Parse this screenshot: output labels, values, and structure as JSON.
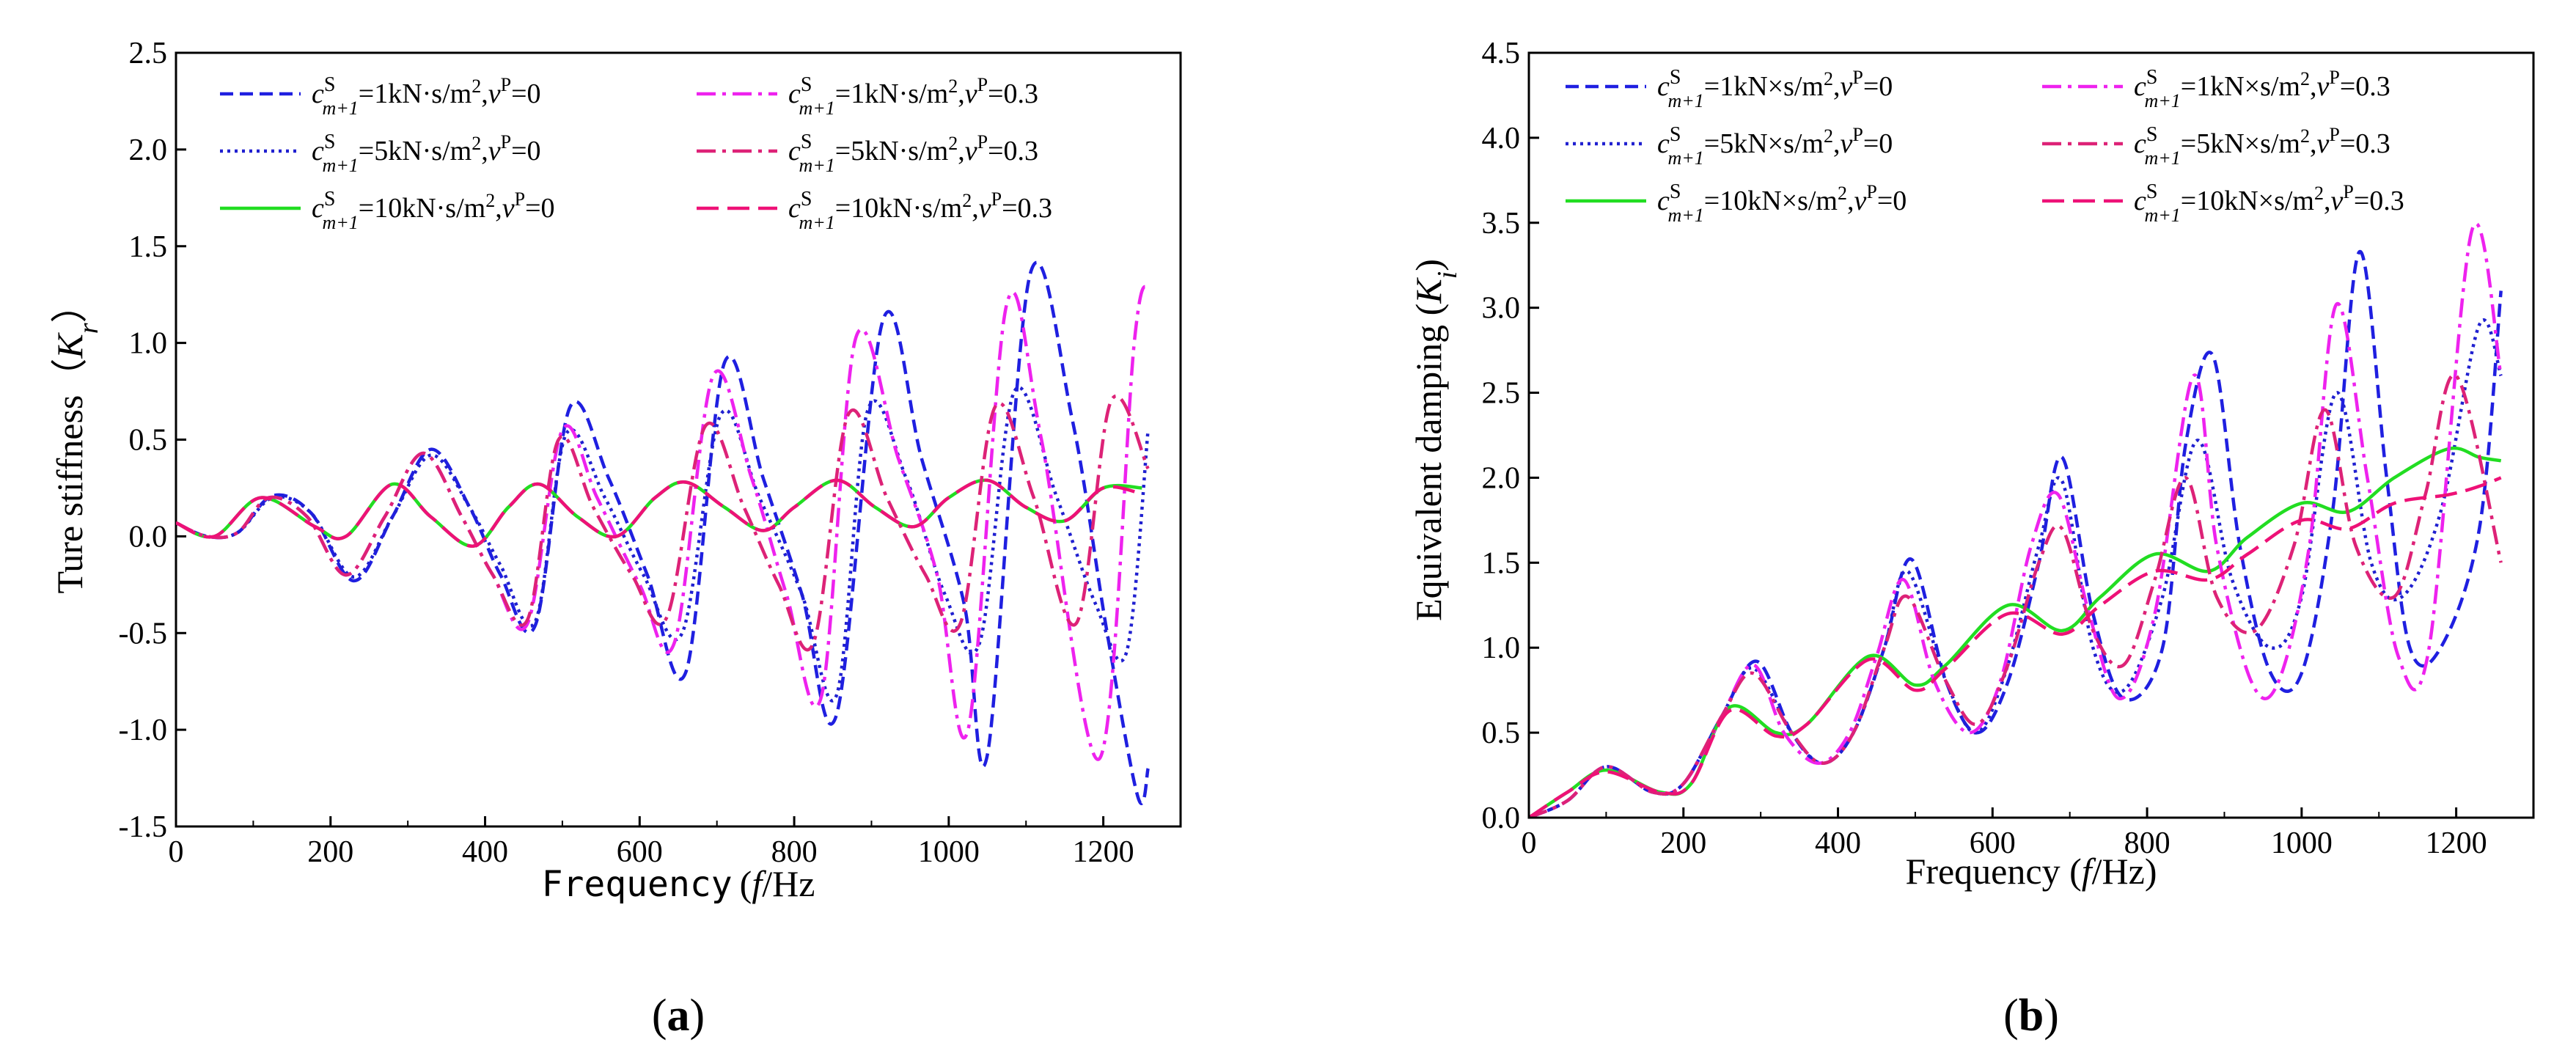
{
  "chart_data": [
    {
      "type": "line",
      "panel_label_open": "(",
      "panel_label_letter": "a",
      "panel_label_close": ")",
      "title": "",
      "xlabel_main": "Frequency",
      "xlabel_open": "(",
      "xlabel_f": "f",
      "xlabel_unit": "/Hz",
      "ylabel_main": "Ture stiffness",
      "ylabel_open": "（",
      "ylabel_K": "K",
      "ylabel_sub": "r",
      "ylabel_close": "）",
      "xlim": [
        0,
        1300
      ],
      "ylim": [
        -1.5,
        2.5
      ],
      "x_ticks": [
        0,
        200,
        400,
        600,
        800,
        1000,
        1200
      ],
      "x_tick_labels": [
        "0",
        "200",
        "400",
        "600",
        "800",
        "1000",
        "1200"
      ],
      "y_ticks": [
        -1.5,
        -1.0,
        -0.5,
        0.0,
        0.5,
        1.0,
        1.5,
        2.0,
        2.5
      ],
      "y_tick_labels": [
        "-1.5",
        "-1.0",
        "-0.5",
        "0.0",
        "0.5",
        "1.0",
        "1.5",
        "2.0",
        "2.5"
      ],
      "grid": false,
      "legend_position": "top-left",
      "series": [
        {
          "c": "1",
          "unit": "kN·s/m",
          "v": "0",
          "color": "#1f1fe0",
          "dash": "dashed",
          "x": [
            0,
            40,
            80,
            125,
            175,
            230,
            280,
            330,
            380,
            420,
            465,
            510,
            560,
            610,
            660,
            710,
            760,
            810,
            855,
            915,
            965,
            1020,
            1050,
            1105,
            1160,
            1205,
            1245,
            1258
          ],
          "y": [
            0.07,
            0.0,
            0.02,
            0.21,
            0.12,
            -0.23,
            0.1,
            0.45,
            0.15,
            -0.2,
            -0.46,
            0.67,
            0.3,
            -0.2,
            -0.7,
            0.9,
            0.3,
            -0.3,
            -0.92,
            1.12,
            0.4,
            -0.35,
            -1.13,
            1.35,
            0.6,
            -0.5,
            -1.35,
            -1.2
          ]
        },
        {
          "c": "5",
          "unit": "kN·s/m",
          "v": "0",
          "color": "#2020d0",
          "dash": "dotted",
          "x": [
            0,
            40,
            80,
            125,
            175,
            230,
            280,
            330,
            380,
            420,
            465,
            505,
            555,
            605,
            655,
            705,
            755,
            810,
            855,
            895,
            945,
            995,
            1040,
            1085,
            1140,
            1190,
            1230,
            1258
          ],
          "y": [
            0.07,
            0.0,
            0.02,
            0.2,
            0.12,
            -0.21,
            0.1,
            0.42,
            0.15,
            -0.15,
            -0.44,
            0.53,
            0.2,
            -0.2,
            -0.5,
            0.63,
            0.2,
            -0.3,
            -0.82,
            0.65,
            0.3,
            -0.3,
            -0.55,
            0.75,
            0.2,
            -0.35,
            -0.6,
            0.55
          ]
        },
        {
          "c": "10",
          "unit": "kN·s/m",
          "v": "0",
          "color": "#22dd22",
          "dash": "solid",
          "x": [
            0,
            50,
            110,
            180,
            220,
            280,
            330,
            385,
            430,
            470,
            520,
            570,
            620,
            660,
            710,
            760,
            800,
            855,
            905,
            955,
            1000,
            1050,
            1100,
            1150,
            1200,
            1250
          ],
          "y": [
            0.07,
            0.0,
            0.2,
            0.05,
            0.0,
            0.27,
            0.1,
            -0.05,
            0.15,
            0.27,
            0.1,
            0.0,
            0.2,
            0.28,
            0.15,
            0.03,
            0.15,
            0.29,
            0.15,
            0.05,
            0.2,
            0.29,
            0.15,
            0.08,
            0.25,
            0.25
          ]
        },
        {
          "c": "1",
          "unit": "kN·s/m",
          "v": "0.3",
          "color": "#ee22ee",
          "dash": "dashdot",
          "x": [
            0,
            40,
            80,
            120,
            170,
            220,
            270,
            320,
            370,
            410,
            455,
            500,
            545,
            600,
            645,
            695,
            745,
            790,
            835,
            880,
            935,
            985,
            1025,
            1075,
            1120,
            1195,
            1240,
            1258
          ],
          "y": [
            0.07,
            0.0,
            0.02,
            0.2,
            0.1,
            -0.2,
            0.1,
            0.43,
            0.1,
            -0.2,
            -0.45,
            0.55,
            0.2,
            -0.25,
            -0.55,
            0.83,
            0.3,
            -0.3,
            -0.83,
            1.03,
            0.4,
            -0.2,
            -1.0,
            1.2,
            0.5,
            -1.15,
            1.0,
            1.3
          ]
        },
        {
          "c": "5",
          "unit": "kN·s/m",
          "v": "0.3",
          "color": "#dd2277",
          "dash": "dashdot",
          "x": [
            0,
            40,
            80,
            120,
            170,
            220,
            270,
            320,
            370,
            410,
            455,
            495,
            540,
            590,
            635,
            685,
            735,
            780,
            825,
            870,
            920,
            970,
            1015,
            1060,
            1110,
            1165,
            1210,
            1258
          ],
          "y": [
            0.07,
            0.0,
            0.02,
            0.2,
            0.1,
            -0.2,
            0.1,
            0.43,
            0.1,
            -0.2,
            -0.43,
            0.5,
            0.15,
            -0.2,
            -0.42,
            0.57,
            0.15,
            -0.25,
            -0.55,
            0.63,
            0.2,
            -0.2,
            -0.45,
            0.67,
            0.2,
            -0.45,
            0.7,
            0.35
          ]
        },
        {
          "c": "10",
          "unit": "kN·s/m",
          "v": "0.3",
          "color": "#ee1177",
          "dash": "longdash",
          "x": [
            0,
            50,
            110,
            180,
            220,
            280,
            330,
            385,
            430,
            470,
            520,
            570,
            620,
            660,
            710,
            760,
            800,
            855,
            905,
            955,
            1000,
            1050,
            1100,
            1150,
            1200,
            1250
          ],
          "y": [
            0.07,
            0.0,
            0.2,
            0.05,
            0.0,
            0.27,
            0.1,
            -0.05,
            0.15,
            0.27,
            0.1,
            0.0,
            0.2,
            0.28,
            0.15,
            0.03,
            0.15,
            0.29,
            0.15,
            0.05,
            0.2,
            0.29,
            0.15,
            0.08,
            0.25,
            0.22
          ]
        }
      ]
    },
    {
      "type": "line",
      "panel_label_open": "(",
      "panel_label_letter": "b",
      "panel_label_close": ")",
      "title": "",
      "xlabel_main": "Frequency (",
      "xlabel_f": "f",
      "xlabel_unit": "/Hz)",
      "ylabel_main": "Equivalent damping (",
      "ylabel_K": "K",
      "ylabel_sub": "i",
      "ylabel_close": ")",
      "xlim": [
        0,
        1300
      ],
      "ylim": [
        0.0,
        4.5
      ],
      "x_ticks": [
        0,
        200,
        400,
        600,
        800,
        1000,
        1200
      ],
      "x_tick_labels": [
        "0",
        "200",
        "400",
        "600",
        "800",
        "1000",
        "1200"
      ],
      "y_ticks": [
        0.0,
        0.5,
        1.0,
        1.5,
        2.0,
        2.5,
        3.0,
        3.5,
        4.0,
        4.5
      ],
      "y_tick_labels": [
        "0.0",
        "0.5",
        "1.0",
        "1.5",
        "2.0",
        "2.5",
        "3.0",
        "3.5",
        "4.0",
        "4.5"
      ],
      "grid": false,
      "legend_position": "top-left",
      "series": [
        {
          "c": "1",
          "unit": "kN×s/m",
          "v": "0",
          "color": "#1f1fe0",
          "dash": "dashed",
          "x": [
            0,
            50,
            100,
            160,
            200,
            250,
            295,
            340,
            380,
            420,
            460,
            495,
            540,
            580,
            620,
            660,
            690,
            730,
            770,
            820,
            850,
            885,
            920,
            960,
            1000,
            1040,
            1075,
            1110,
            1140,
            1180,
            1230,
            1258
          ],
          "y": [
            0.0,
            0.1,
            0.3,
            0.15,
            0.2,
            0.6,
            0.92,
            0.5,
            0.32,
            0.5,
            1.0,
            1.52,
            0.8,
            0.5,
            0.8,
            1.5,
            2.12,
            1.2,
            0.7,
            1.0,
            2.2,
            2.72,
            1.6,
            0.85,
            0.85,
            1.8,
            3.33,
            2.0,
            1.0,
            1.0,
            1.7,
            3.1
          ]
        },
        {
          "c": "5",
          "unit": "kN×s/m",
          "v": "0",
          "color": "#2020d0",
          "dash": "dotted",
          "x": [
            0,
            50,
            100,
            160,
            200,
            250,
            290,
            340,
            380,
            420,
            460,
            490,
            540,
            580,
            620,
            660,
            690,
            730,
            770,
            820,
            865,
            910,
            960,
            1000,
            1045,
            1090,
            1130,
            1180,
            1230,
            1258
          ],
          "y": [
            0.0,
            0.1,
            0.3,
            0.15,
            0.2,
            0.6,
            0.88,
            0.5,
            0.32,
            0.5,
            1.0,
            1.45,
            0.8,
            0.5,
            0.9,
            1.6,
            1.98,
            1.0,
            0.75,
            1.3,
            2.22,
            1.4,
            1.0,
            1.3,
            2.5,
            1.5,
            1.3,
            1.8,
            2.9,
            2.6
          ]
        },
        {
          "c": "10",
          "unit": "kN×s/m",
          "v": "0",
          "color": "#22dd22",
          "dash": "solid",
          "x": [
            0,
            50,
            100,
            170,
            210,
            260,
            320,
            360,
            440,
            500,
            540,
            620,
            690,
            740,
            810,
            880,
            930,
            1000,
            1060,
            1120,
            1190,
            1230,
            1258
          ],
          "y": [
            0.0,
            0.15,
            0.28,
            0.15,
            0.2,
            0.65,
            0.5,
            0.55,
            0.95,
            0.78,
            0.9,
            1.25,
            1.1,
            1.3,
            1.55,
            1.45,
            1.65,
            1.85,
            1.8,
            2.0,
            2.17,
            2.12,
            2.1
          ]
        },
        {
          "c": "1",
          "unit": "kN×s/m",
          "v": "0.3",
          "color": "#ee22ee",
          "dash": "dashdot",
          "x": [
            0,
            50,
            100,
            160,
            200,
            245,
            290,
            330,
            375,
            415,
            450,
            485,
            525,
            570,
            610,
            650,
            685,
            725,
            765,
            810,
            860,
            890,
            935,
            970,
            1010,
            1045,
            1085,
            1125,
            1165,
            1220,
            1258
          ],
          "y": [
            0.0,
            0.1,
            0.3,
            0.15,
            0.2,
            0.55,
            0.9,
            0.5,
            0.32,
            0.5,
            0.95,
            1.4,
            0.8,
            0.5,
            0.8,
            1.6,
            1.9,
            1.2,
            0.7,
            1.2,
            2.6,
            1.6,
            0.8,
            0.8,
            1.6,
            3.02,
            2.0,
            0.95,
            1.0,
            3.45,
            2.6
          ]
        },
        {
          "c": "5",
          "unit": "kN×s/m",
          "v": "0.3",
          "color": "#dd2277",
          "dash": "dashdot",
          "x": [
            0,
            50,
            100,
            160,
            200,
            250,
            290,
            340,
            380,
            420,
            460,
            490,
            540,
            580,
            620,
            660,
            690,
            730,
            770,
            810,
            850,
            890,
            940,
            990,
            1030,
            1070,
            1120,
            1160,
            1200,
            1258
          ],
          "y": [
            0.0,
            0.1,
            0.3,
            0.15,
            0.2,
            0.6,
            0.85,
            0.5,
            0.32,
            0.5,
            1.0,
            1.3,
            0.8,
            0.55,
            0.9,
            1.5,
            1.7,
            1.1,
            0.9,
            1.4,
            2.0,
            1.3,
            1.1,
            1.6,
            2.4,
            1.6,
            1.3,
            1.9,
            2.6,
            1.5
          ]
        },
        {
          "c": "10",
          "unit": "kN×s/m",
          "v": "0.3",
          "color": "#ee1177",
          "dash": "longdash",
          "x": [
            0,
            50,
            100,
            170,
            210,
            260,
            320,
            360,
            440,
            500,
            540,
            620,
            690,
            740,
            810,
            880,
            930,
            1000,
            1060,
            1120,
            1190,
            1230,
            1258
          ],
          "y": [
            0.0,
            0.15,
            0.27,
            0.15,
            0.2,
            0.63,
            0.48,
            0.55,
            0.93,
            0.75,
            0.88,
            1.2,
            1.08,
            1.25,
            1.45,
            1.4,
            1.55,
            1.75,
            1.7,
            1.85,
            1.9,
            1.95,
            2.0
          ]
        }
      ]
    }
  ],
  "legend_text": {
    "c_letter": "c",
    "c_sup": "S",
    "c_sub": "m+1",
    "eq": "=",
    "sq": "2",
    "nu_letter": "v",
    "nu_sup": "P",
    "sep": ","
  }
}
